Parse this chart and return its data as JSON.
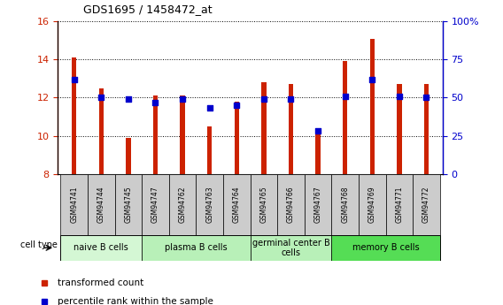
{
  "title": "GDS1695 / 1458472_at",
  "samples": [
    "GSM94741",
    "GSM94744",
    "GSM94745",
    "GSM94747",
    "GSM94762",
    "GSM94763",
    "GSM94764",
    "GSM94765",
    "GSM94766",
    "GSM94767",
    "GSM94768",
    "GSM94769",
    "GSM94771",
    "GSM94772"
  ],
  "transformed_count": [
    14.1,
    12.5,
    9.9,
    12.1,
    12.1,
    10.5,
    11.8,
    12.8,
    12.7,
    10.1,
    13.9,
    15.1,
    12.7,
    12.7
  ],
  "percentile_rank": [
    62,
    50,
    49,
    47,
    49,
    43,
    45,
    49,
    49,
    28,
    51,
    62,
    51,
    50
  ],
  "ylim_left": [
    8,
    16
  ],
  "ylim_right": [
    0,
    100
  ],
  "cell_groups": [
    {
      "label": "naive B cells",
      "start": 0,
      "end": 3,
      "color": "#d4f7d4"
    },
    {
      "label": "plasma B cells",
      "start": 3,
      "end": 7,
      "color": "#b8f0b8"
    },
    {
      "label": "germinal center B\ncells",
      "start": 7,
      "end": 10,
      "color": "#b8f0b8"
    },
    {
      "label": "memory B cells",
      "start": 10,
      "end": 14,
      "color": "#55dd55"
    }
  ],
  "bar_color": "#cc2200",
  "dot_color": "#0000cc",
  "tick_color_left": "#cc2200",
  "tick_color_right": "#0000cc",
  "yticks_left": [
    8,
    10,
    12,
    14,
    16
  ],
  "yticks_right": [
    0,
    25,
    50,
    75,
    100
  ],
  "bar_width": 0.18,
  "dot_size": 22,
  "sample_box_color": "#cccccc",
  "bg_color": "#ffffff"
}
